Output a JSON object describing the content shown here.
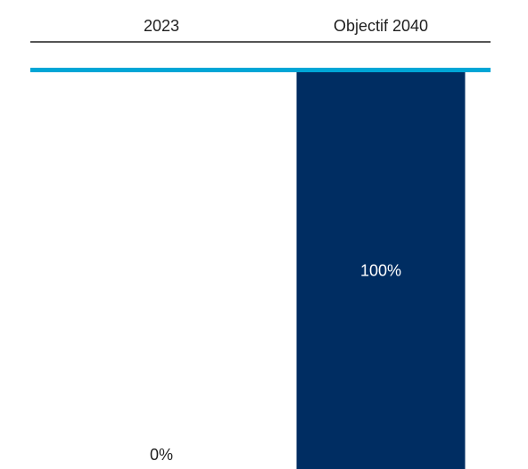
{
  "chart_data": {
    "type": "bar",
    "categories": [
      "2023",
      "Objectif 2040"
    ],
    "values": [
      0,
      100
    ],
    "value_labels": [
      "0%",
      "100%"
    ],
    "ylim": [
      0,
      100
    ],
    "title": "",
    "xlabel": "",
    "ylabel": "",
    "grid": false,
    "legend": "none"
  },
  "colors": {
    "bar": "#002d62",
    "top_line": "#00a6d6",
    "header_rule": "#1f1f1f",
    "header_text": "#1f1f1f",
    "inside_label": "#ffffff",
    "outside_label": "#1f1f1f"
  }
}
